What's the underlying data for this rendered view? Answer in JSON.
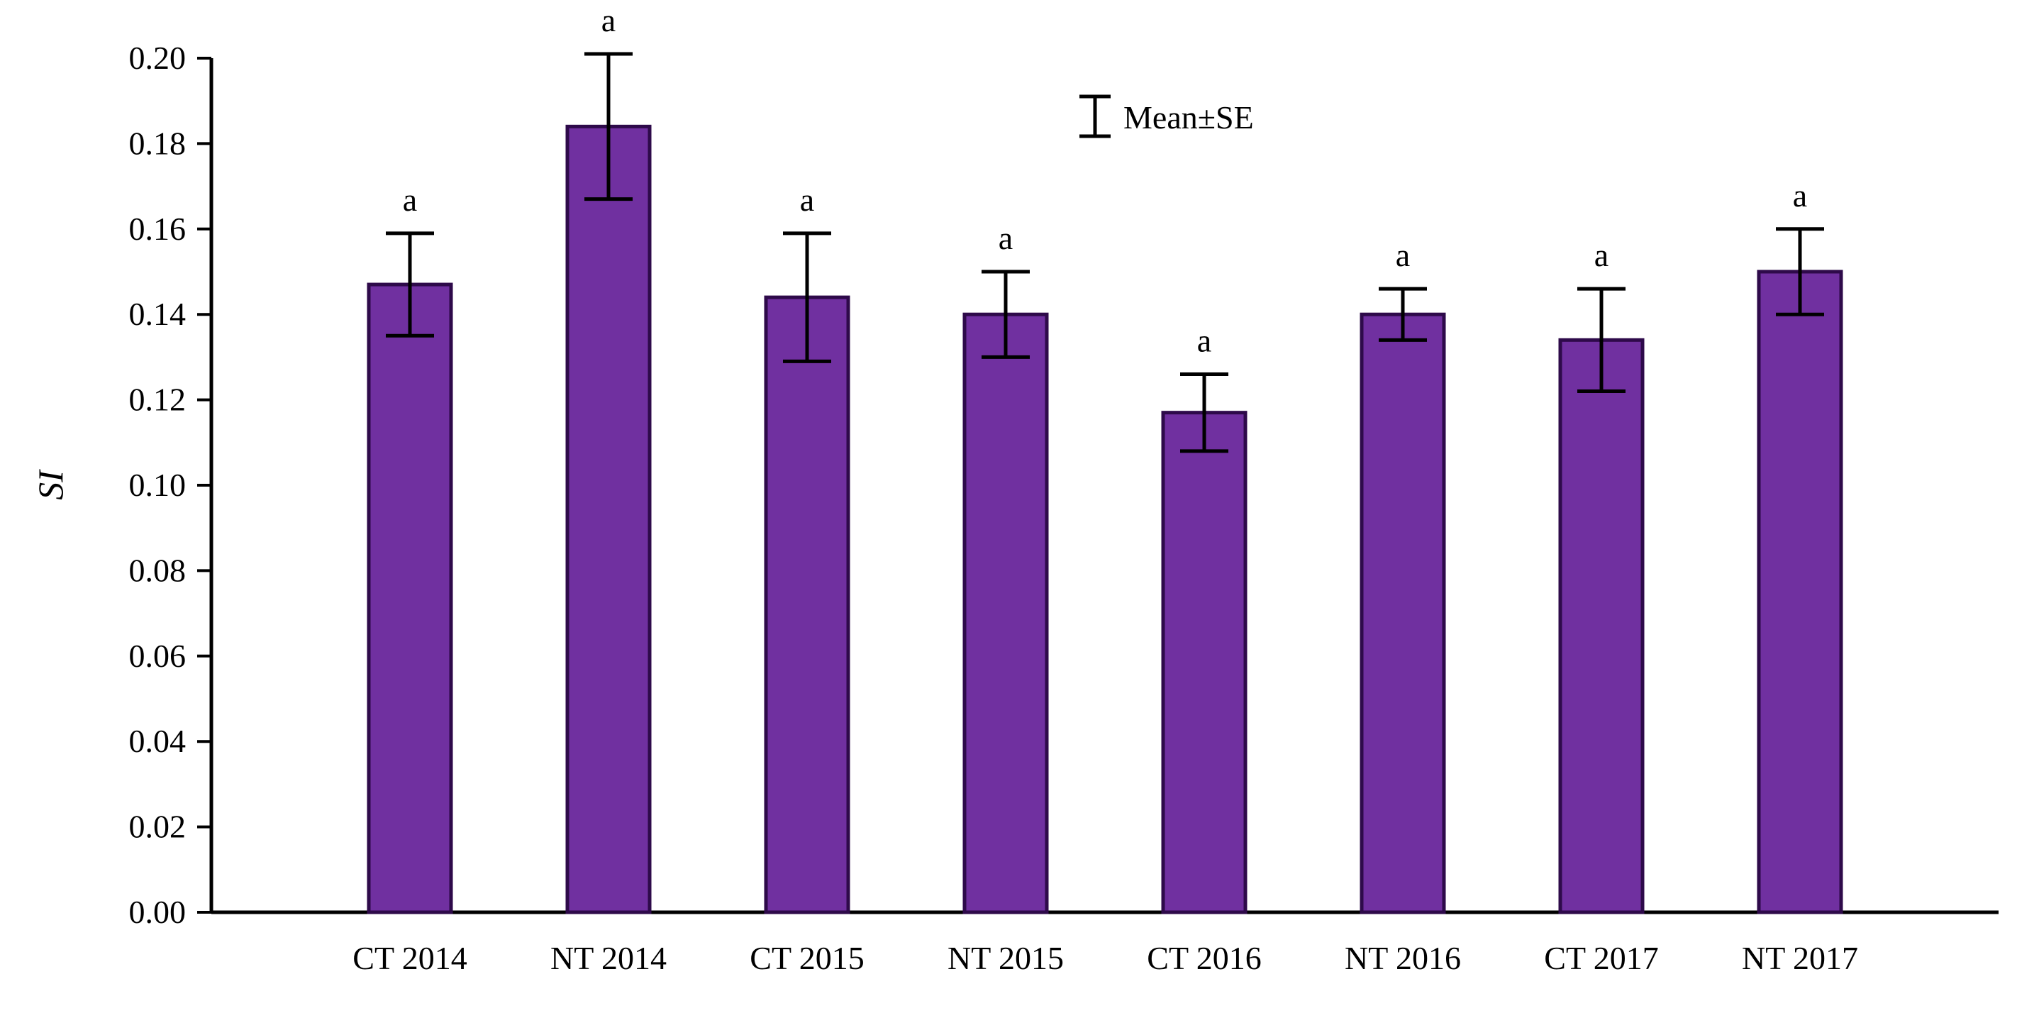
{
  "chart_data": {
    "type": "bar",
    "title": "",
    "xlabel": "",
    "ylabel": "SI",
    "ylim": [
      0,
      0.2
    ],
    "y_ticks": [
      "0.00",
      "0.02",
      "0.04",
      "0.06",
      "0.08",
      "0.10",
      "0.12",
      "0.14",
      "0.16",
      "0.18",
      "0.20"
    ],
    "y_tick_values": [
      0,
      0.02,
      0.04,
      0.06,
      0.08,
      0.1,
      0.12,
      0.14,
      0.16,
      0.18,
      0.2
    ],
    "categories": [
      "CT 2014",
      "NT 2014",
      "CT 2015",
      "NT 2015",
      "CT 2016",
      "NT 2016",
      "CT 2017",
      "NT 2017"
    ],
    "values": [
      0.147,
      0.184,
      0.144,
      0.14,
      0.117,
      0.14,
      0.134,
      0.15
    ],
    "errors": [
      0.012,
      0.017,
      0.015,
      0.01,
      0.009,
      0.006,
      0.012,
      0.01
    ],
    "significance": [
      "a",
      "a",
      "a",
      "a",
      "a",
      "a",
      "a",
      "a"
    ],
    "legend": {
      "label": "Mean±SE",
      "placement": "top-center"
    },
    "grid": false,
    "colors": {
      "bar_fill": "#7030a0",
      "bar_stroke": "#2e0a4a",
      "axis": "#000000",
      "error_bar": "#000000"
    }
  }
}
